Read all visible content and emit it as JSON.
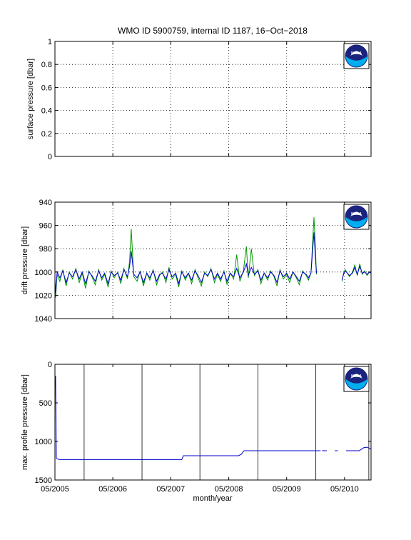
{
  "figure": {
    "title": "WMO ID 5900759, internal ID 1187, 16−Oct−2018",
    "xlabel": "month/year",
    "logo": {
      "icon": "noaa-logo-icon",
      "text": "NOAA"
    }
  },
  "colors": {
    "blue": "#0000cc",
    "green": "#009900",
    "axis": "#000000",
    "grid": "#000000",
    "logo_navy": "#1a237e",
    "logo_cyan": "#00aeef"
  },
  "xaxis": {
    "range": [
      "2005-05-01",
      "2010-10-15"
    ],
    "ticks": [
      {
        "date": "2005-05-01",
        "label": "05/2005"
      },
      {
        "date": "2006-05-01",
        "label": "05/2006"
      },
      {
        "date": "2007-05-01",
        "label": "05/2007"
      },
      {
        "date": "2008-05-01",
        "label": "05/2008"
      },
      {
        "date": "2009-05-01",
        "label": "05/2009"
      },
      {
        "date": "2010-05-01",
        "label": "05/2010"
      }
    ],
    "minor_lines": [
      "2005-11-01",
      "2006-11-01",
      "2007-11-01",
      "2008-11-01",
      "2009-11-01",
      "2010-11-01"
    ]
  },
  "chart_data": [
    {
      "type": "line",
      "ylabel": "surface pressure [dbar]",
      "ylim": [
        0,
        1
      ],
      "yreversed": false,
      "yticks": [
        "0",
        "0.2",
        "0.4",
        "0.6",
        "0.8",
        "1"
      ],
      "yticks_values": [
        0,
        0.2,
        0.4,
        0.6,
        0.8,
        1
      ],
      "grid": "dotted",
      "series": []
    },
    {
      "type": "line",
      "ylabel": "drift pressure [dbar]",
      "ylim": [
        940,
        1040
      ],
      "yreversed": true,
      "yticks": [
        "940",
        "960",
        "980",
        "1000",
        "1020",
        "1040"
      ],
      "yticks_values": [
        940,
        960,
        980,
        1000,
        1020,
        1040
      ],
      "grid": "dotted",
      "series": [
        {
          "color": "#009900",
          "x": [
            "2005-05-01",
            "2005-05-05",
            "2005-05-15",
            "2005-06-01",
            "2005-06-20",
            "2005-07-10",
            "2005-07-30",
            "2005-08-20",
            "2005-09-10",
            "2005-10-01",
            "2005-10-20",
            "2005-11-10",
            "2005-12-01",
            "2005-12-20",
            "2006-01-10",
            "2006-02-01",
            "2006-02-20",
            "2006-03-10",
            "2006-04-01",
            "2006-04-20",
            "2006-05-10",
            "2006-06-01",
            "2006-06-20",
            "2006-07-10",
            "2006-08-01",
            "2006-08-15",
            "2006-08-25",
            "2006-09-10",
            "2006-10-01",
            "2006-10-20",
            "2006-11-10",
            "2006-12-01",
            "2006-12-20",
            "2007-01-10",
            "2007-02-01",
            "2007-02-20",
            "2007-03-10",
            "2007-04-01",
            "2007-04-20",
            "2007-05-10",
            "2007-06-01",
            "2007-06-20",
            "2007-07-10",
            "2007-08-01",
            "2007-08-20",
            "2007-09-10",
            "2007-10-01",
            "2007-10-20",
            "2007-11-10",
            "2007-12-01",
            "2007-12-20",
            "2008-01-10",
            "2008-02-01",
            "2008-02-20",
            "2008-03-10",
            "2008-04-01",
            "2008-04-20",
            "2008-05-10",
            "2008-06-01",
            "2008-06-20",
            "2008-07-10",
            "2008-08-01",
            "2008-08-20",
            "2008-09-01",
            "2008-09-20",
            "2008-10-10",
            "2008-11-01",
            "2008-11-20",
            "2008-12-10",
            "2009-01-01",
            "2009-01-20",
            "2009-02-10",
            "2009-03-01",
            "2009-03-20",
            "2009-04-10",
            "2009-05-01",
            "2009-05-20",
            "2009-06-10",
            "2009-07-01",
            "2009-07-20",
            "2009-08-10",
            "2009-09-01",
            "2009-09-15",
            "2009-10-01",
            "2009-10-20",
            "2009-10-28",
            "2009-11-05"
          ],
          "values": [
            1010,
            1022,
            1002,
            1008,
            998,
            1012,
            1000,
            1006,
            997,
            1009,
            1001,
            1014,
            999,
            1004,
            1011,
            998,
            1007,
            1002,
            1013,
            999,
            1005,
            1000,
            1010,
            997,
            1006,
            990,
            963,
            1004,
            1008,
            999,
            1012,
            1001,
            1007,
            998,
            1011,
            1003,
            1000,
            1009,
            996,
            1006,
            1002,
            1013,
            999,
            1007,
            1001,
            1010,
            998,
            1005,
            1012,
            1000,
            1004,
            997,
            1009,
            1002,
            1008,
            999,
            1011,
            1001,
            1006,
            985,
            1008,
            999,
            978,
            1005,
            980,
            1003,
            998,
            1010,
            1001,
            1007,
            999,
            1004,
            1012,
            998,
            1006,
            1002,
            1009,
            1000,
            1005,
            1011,
            999,
            1003,
            1007,
            1001,
            953,
            975,
            1002
          ]
        },
        {
          "color": "#009900",
          "x": [
            "2010-04-15",
            "2010-04-25",
            "2010-05-05",
            "2010-06-01",
            "2010-06-20",
            "2010-07-05",
            "2010-07-20",
            "2010-08-05",
            "2010-08-20",
            "2010-09-05",
            "2010-09-20",
            "2010-10-05",
            "2010-10-15"
          ],
          "values": [
            1008,
            1001,
            998,
            1004,
            1000,
            994,
            1003,
            993,
            1002,
            999,
            1003,
            1000,
            1001
          ]
        },
        {
          "color": "#0000cc",
          "x": [
            "2005-05-01",
            "2005-05-05",
            "2005-05-15",
            "2005-06-01",
            "2005-06-20",
            "2005-07-10",
            "2005-07-30",
            "2005-08-20",
            "2005-09-10",
            "2005-10-01",
            "2005-10-20",
            "2005-11-10",
            "2005-12-01",
            "2005-12-20",
            "2006-01-10",
            "2006-02-01",
            "2006-02-20",
            "2006-03-10",
            "2006-04-01",
            "2006-04-20",
            "2006-05-10",
            "2006-06-01",
            "2006-06-20",
            "2006-07-10",
            "2006-08-01",
            "2006-08-15",
            "2006-08-25",
            "2006-09-10",
            "2006-10-01",
            "2006-10-20",
            "2006-11-10",
            "2006-12-01",
            "2006-12-20",
            "2007-01-10",
            "2007-02-01",
            "2007-02-20",
            "2007-03-10",
            "2007-04-01",
            "2007-04-20",
            "2007-05-10",
            "2007-06-01",
            "2007-06-20",
            "2007-07-10",
            "2007-08-01",
            "2007-08-20",
            "2007-09-10",
            "2007-10-01",
            "2007-10-20",
            "2007-11-10",
            "2007-12-01",
            "2007-12-20",
            "2008-01-10",
            "2008-02-01",
            "2008-02-20",
            "2008-03-10",
            "2008-04-01",
            "2008-04-20",
            "2008-05-10",
            "2008-06-01",
            "2008-06-20",
            "2008-07-10",
            "2008-08-01",
            "2008-08-20",
            "2008-09-01",
            "2008-09-20",
            "2008-10-10",
            "2008-11-01",
            "2008-11-20",
            "2008-12-10",
            "2009-01-01",
            "2009-01-20",
            "2009-02-10",
            "2009-03-01",
            "2009-03-20",
            "2009-04-10",
            "2009-05-01",
            "2009-05-20",
            "2009-06-10",
            "2009-07-01",
            "2009-07-20",
            "2009-08-10",
            "2009-09-01",
            "2009-09-15",
            "2009-10-01",
            "2009-10-20",
            "2009-10-28",
            "2009-11-05"
          ],
          "values": [
            1007,
            1018,
            1000,
            1005,
            999,
            1009,
            1001,
            1004,
            998,
            1006,
            1000,
            1010,
            1000,
            1003,
            1008,
            999,
            1005,
            1001,
            1010,
            1000,
            1003,
            1001,
            1007,
            998,
            1004,
            995,
            982,
            1002,
            1005,
            1000,
            1009,
            1001,
            1005,
            999,
            1008,
            1002,
            1001,
            1006,
            998,
            1004,
            1001,
            1010,
            1000,
            1005,
            1001,
            1007,
            999,
            1003,
            1009,
            1001,
            1003,
            998,
            1006,
            1001,
            1006,
            1000,
            1008,
            1001,
            1004,
            997,
            1005,
            1000,
            993,
            1003,
            996,
            1002,
            999,
            1007,
            1001,
            1005,
            1000,
            1003,
            1009,
            999,
            1004,
            1001,
            1006,
            1000,
            1004,
            1008,
            1000,
            1002,
            1005,
            1001,
            966,
            985,
            1001
          ]
        },
        {
          "color": "#0000cc",
          "x": [
            "2010-04-15",
            "2010-04-25",
            "2010-05-05",
            "2010-06-01",
            "2010-06-20",
            "2010-07-05",
            "2010-07-20",
            "2010-08-05",
            "2010-08-20",
            "2010-09-05",
            "2010-09-20",
            "2010-10-05",
            "2010-10-15"
          ],
          "values": [
            1007,
            1002,
            999,
            1003,
            1001,
            996,
            1002,
            995,
            1001,
            1000,
            1002,
            1000,
            1001
          ]
        }
      ]
    },
    {
      "type": "line",
      "ylabel": "max. profile pressure [dbar]",
      "ylim": [
        0,
        1500
      ],
      "yreversed": true,
      "yticks": [
        "0",
        "500",
        "1000",
        "1500"
      ],
      "yticks_values": [
        0,
        500,
        1000,
        1500
      ],
      "grid": "solid-x",
      "series": [
        {
          "color": "#0000cc",
          "x": [
            "2005-05-05",
            "2005-05-10",
            "2005-05-20",
            "2005-06-01",
            "2007-07-10",
            "2007-07-20",
            "2008-07-01",
            "2008-07-20",
            "2008-08-05",
            "2009-12-01"
          ],
          "values": [
            150,
            1220,
            1230,
            1235,
            1235,
            1185,
            1185,
            1165,
            1120,
            1120
          ]
        },
        {
          "color": "#0000cc",
          "x": [
            "2009-12-10",
            "2010-01-10"
          ],
          "values": [
            1120,
            1120
          ]
        },
        {
          "color": "#0000cc",
          "x": [
            "2010-03-01",
            "2010-03-20"
          ],
          "values": [
            1120,
            1120
          ]
        },
        {
          "color": "#0000cc",
          "x": [
            "2010-05-10",
            "2010-06-20",
            "2010-08-01",
            "2010-09-01",
            "2010-09-20",
            "2010-10-15"
          ],
          "values": [
            1120,
            1120,
            1120,
            1080,
            1075,
            1100
          ]
        }
      ]
    }
  ]
}
